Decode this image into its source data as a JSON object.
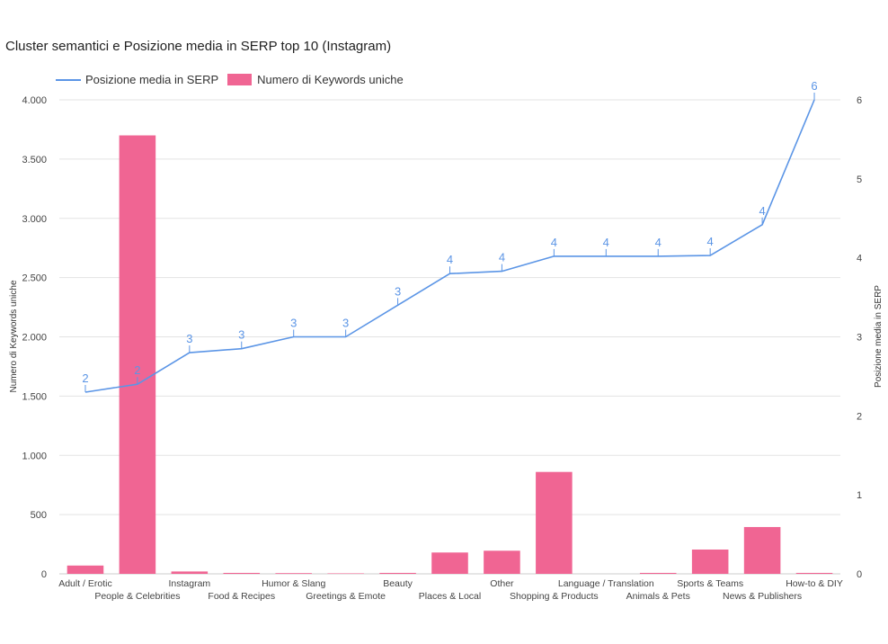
{
  "colors": {
    "line": "#5b95e6",
    "bar": "#f06593",
    "grid": "#e3e3e3",
    "axis": "#cccccc",
    "text": "#444444"
  },
  "chart_data": {
    "type": "bar",
    "title": "Cluster semantici e Posizione media in SERP top 10 (Instagram)",
    "ylabel": "Numero di Keywords uniche",
    "ylabel_right": "Posizione media in SERP",
    "ylim": [
      0,
      4000
    ],
    "ylim_right": [
      0,
      6
    ],
    "yticks": [
      0,
      500,
      1000,
      1500,
      2000,
      2500,
      3000,
      3500,
      4000
    ],
    "ytick_labels": [
      "0",
      "500",
      "1.000",
      "1.500",
      "2.000",
      "2.500",
      "3.000",
      "3.500",
      "4.000"
    ],
    "yticks_right": [
      0,
      1,
      2,
      3,
      4,
      5,
      6
    ],
    "ytick_labels_right": [
      "0",
      "1",
      "2",
      "3",
      "4",
      "5",
      "6"
    ],
    "legend_position": "top-left",
    "grid": true,
    "categories": [
      "Adult / Erotic",
      "People & Celebrities",
      "Instagram",
      "Food & Recipes",
      "Humor & Slang",
      "Greetings & Emote",
      "Beauty",
      "Places & Local",
      "Other",
      "Shopping & Products",
      "Language / Translation",
      "Animals & Pets",
      "Sports & Teams",
      "News & Publishers",
      "How-to & DIY"
    ],
    "series": [
      {
        "name": "Posizione media in SERP",
        "type": "line",
        "axis": "right",
        "values": [
          2.3,
          2.4,
          2.8,
          2.85,
          3.0,
          3.0,
          3.4,
          3.8,
          3.83,
          4.02,
          4.02,
          4.02,
          4.03,
          4.42,
          6.0
        ],
        "data_labels": [
          "2",
          "2",
          "3",
          "3",
          "3",
          "3",
          "3",
          "4",
          "4",
          "4",
          "4",
          "4",
          "4",
          "4",
          "6"
        ]
      },
      {
        "name": "Numero di Keywords uniche",
        "type": "bar",
        "axis": "left",
        "values": [
          70,
          3700,
          20,
          8,
          6,
          4,
          8,
          180,
          195,
          860,
          0,
          8,
          205,
          395,
          8
        ]
      }
    ]
  }
}
